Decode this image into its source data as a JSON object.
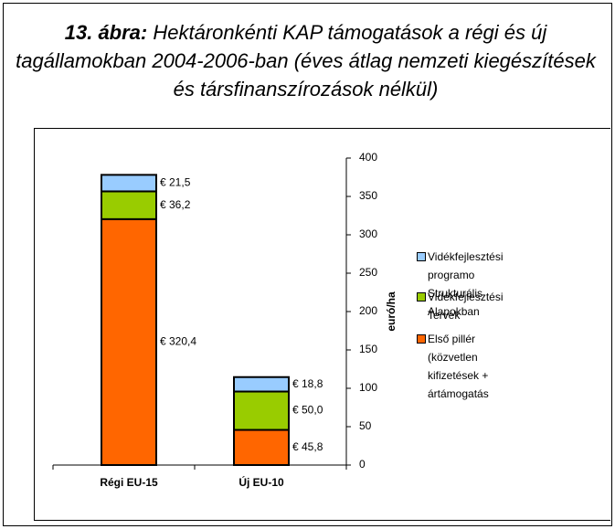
{
  "chart_data": {
    "type": "stacked_bar",
    "title_prefix": "13. ábra:",
    "title": "Hektáronkénti KAP támogatások a régi és új tagállamokban 2004-2006-ban (éves átlag nemzeti kiegészítések és társfinanszírozások nélkül)",
    "categories": [
      "Régi EU-15",
      "Új EU-10"
    ],
    "series": [
      {
        "name": "Első pillér (közvetlen\nkifizetések + ártámogatás",
        "color": "#ff6600",
        "values": [
          320.4,
          45.8
        ],
        "value_labels": [
          "€ 320,4",
          "€ 45,8"
        ]
      },
      {
        "name": "Vidékfejlesztési Tervek",
        "color": "#99cc00",
        "values": [
          36.2,
          50.0
        ],
        "value_labels": [
          "€ 36,2",
          "€ 50,0"
        ]
      },
      {
        "name": "Vidékfejlesztési programo\nStrukturális Alapokban",
        "color": "#99ccff",
        "values": [
          21.5,
          18.8
        ],
        "value_labels": [
          "€ 21,5",
          "€ 18,8"
        ]
      }
    ],
    "y_axis_label": "euró/ha",
    "y_axis_side": "right",
    "ylim": [
      0,
      400
    ],
    "yticks": [
      0,
      50,
      100,
      150,
      200,
      250,
      300,
      350,
      400
    ]
  }
}
